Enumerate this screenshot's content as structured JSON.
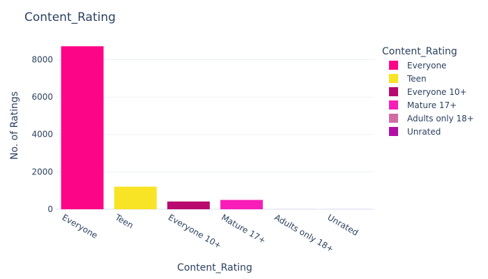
{
  "chart_data": {
    "type": "bar",
    "title": "Content_Rating",
    "xlabel": "Content_Rating",
    "ylabel": "No. of Ratings",
    "categories": [
      "Everyone",
      "Teen",
      "Everyone 10+",
      "Mature 17+",
      "Adults only 18+",
      "Unrated"
    ],
    "values": [
      8714,
      1208,
      414,
      499,
      3,
      2
    ],
    "ylim": [
      0,
      8800
    ],
    "yticks": [
      0,
      2000,
      4000,
      6000,
      8000
    ],
    "grid": true,
    "legend": {
      "title": "Content_Rating",
      "placement": "right",
      "entries": [
        "Everyone",
        "Teen",
        "Everyone 10+",
        "Mature 17+",
        "Adults only 18+",
        "Unrated"
      ]
    },
    "colors": [
      "#FD0587",
      "#F9E325",
      "#B80A6F",
      "#F81DB8",
      "#D16BA5",
      "#B10FA6"
    ]
  }
}
